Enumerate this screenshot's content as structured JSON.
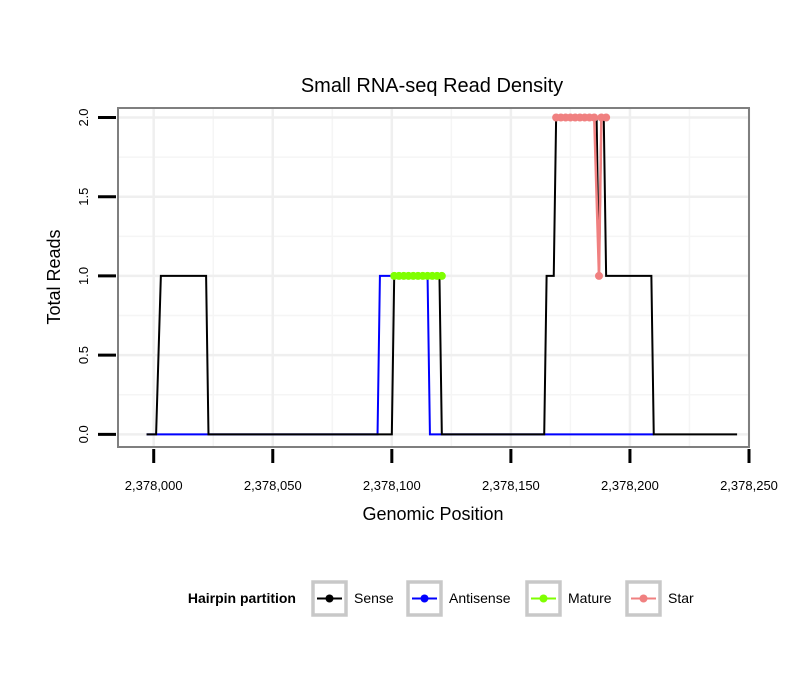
{
  "chart_data": {
    "type": "line",
    "title": "Small RNA-seq Read Density",
    "xlabel": "Genomic Position",
    "ylabel": "Total Reads",
    "xlim": [
      2377985,
      2378250
    ],
    "ylim": [
      -0.08,
      2.06
    ],
    "x_ticks": [
      2378000,
      2378050,
      2378100,
      2378150,
      2378200,
      2378250
    ],
    "x_tick_labels": [
      "2,378,000",
      "2,378,050",
      "2,378,100",
      "2,378,150",
      "2,378,200",
      "2,378,250"
    ],
    "y_ticks": [
      0,
      0.5,
      1,
      1.5,
      2
    ],
    "y_tick_labels": [
      "0.0",
      "0.5",
      "1.0",
      "1.5",
      "2.0"
    ],
    "grid": true,
    "legend": {
      "title": "Hairpin partition",
      "placement": "bottom",
      "entries": [
        {
          "label": "Sense",
          "color": "#000000"
        },
        {
          "label": "Antisense",
          "color": "#0000ff"
        },
        {
          "label": "Mature",
          "color": "#7fff00"
        },
        {
          "label": "Star",
          "color": "#f08080"
        }
      ]
    },
    "series": [
      {
        "name": "Sense",
        "color": "#000000",
        "markers": false,
        "x": [
          2377997,
          2378001,
          2378003,
          2378022,
          2378023,
          2378100,
          2378101,
          2378120,
          2378121,
          2378164,
          2378165,
          2378168,
          2378169,
          2378186,
          2378187,
          2378188,
          2378189,
          2378190,
          2378191,
          2378209,
          2378210,
          2378245
        ],
        "y": [
          0,
          0,
          1,
          1,
          0,
          0,
          1,
          1,
          0,
          0,
          1,
          1,
          2,
          2,
          1,
          2,
          2,
          1,
          1,
          1,
          0,
          0
        ]
      },
      {
        "name": "Antisense",
        "color": "#0000ff",
        "markers": false,
        "x": [
          2377997,
          2378094,
          2378095,
          2378115,
          2378116,
          2378210
        ],
        "y": [
          0,
          0,
          1,
          1,
          0,
          0
        ]
      },
      {
        "name": "Mature",
        "color": "#7fff00",
        "markers": true,
        "x": [
          2378101,
          2378103,
          2378105,
          2378107,
          2378109,
          2378111,
          2378113,
          2378115,
          2378117,
          2378119,
          2378121
        ],
        "y": [
          1,
          1,
          1,
          1,
          1,
          1,
          1,
          1,
          1,
          1,
          1
        ]
      },
      {
        "name": "Star",
        "color": "#f08080",
        "markers": true,
        "x": [
          2378169,
          2378171,
          2378173,
          2378175,
          2378177,
          2378179,
          2378181,
          2378183,
          2378185,
          2378187,
          2378188,
          2378190
        ],
        "y": [
          2,
          2,
          2,
          2,
          2,
          2,
          2,
          2,
          2,
          1,
          2,
          2
        ]
      }
    ]
  }
}
